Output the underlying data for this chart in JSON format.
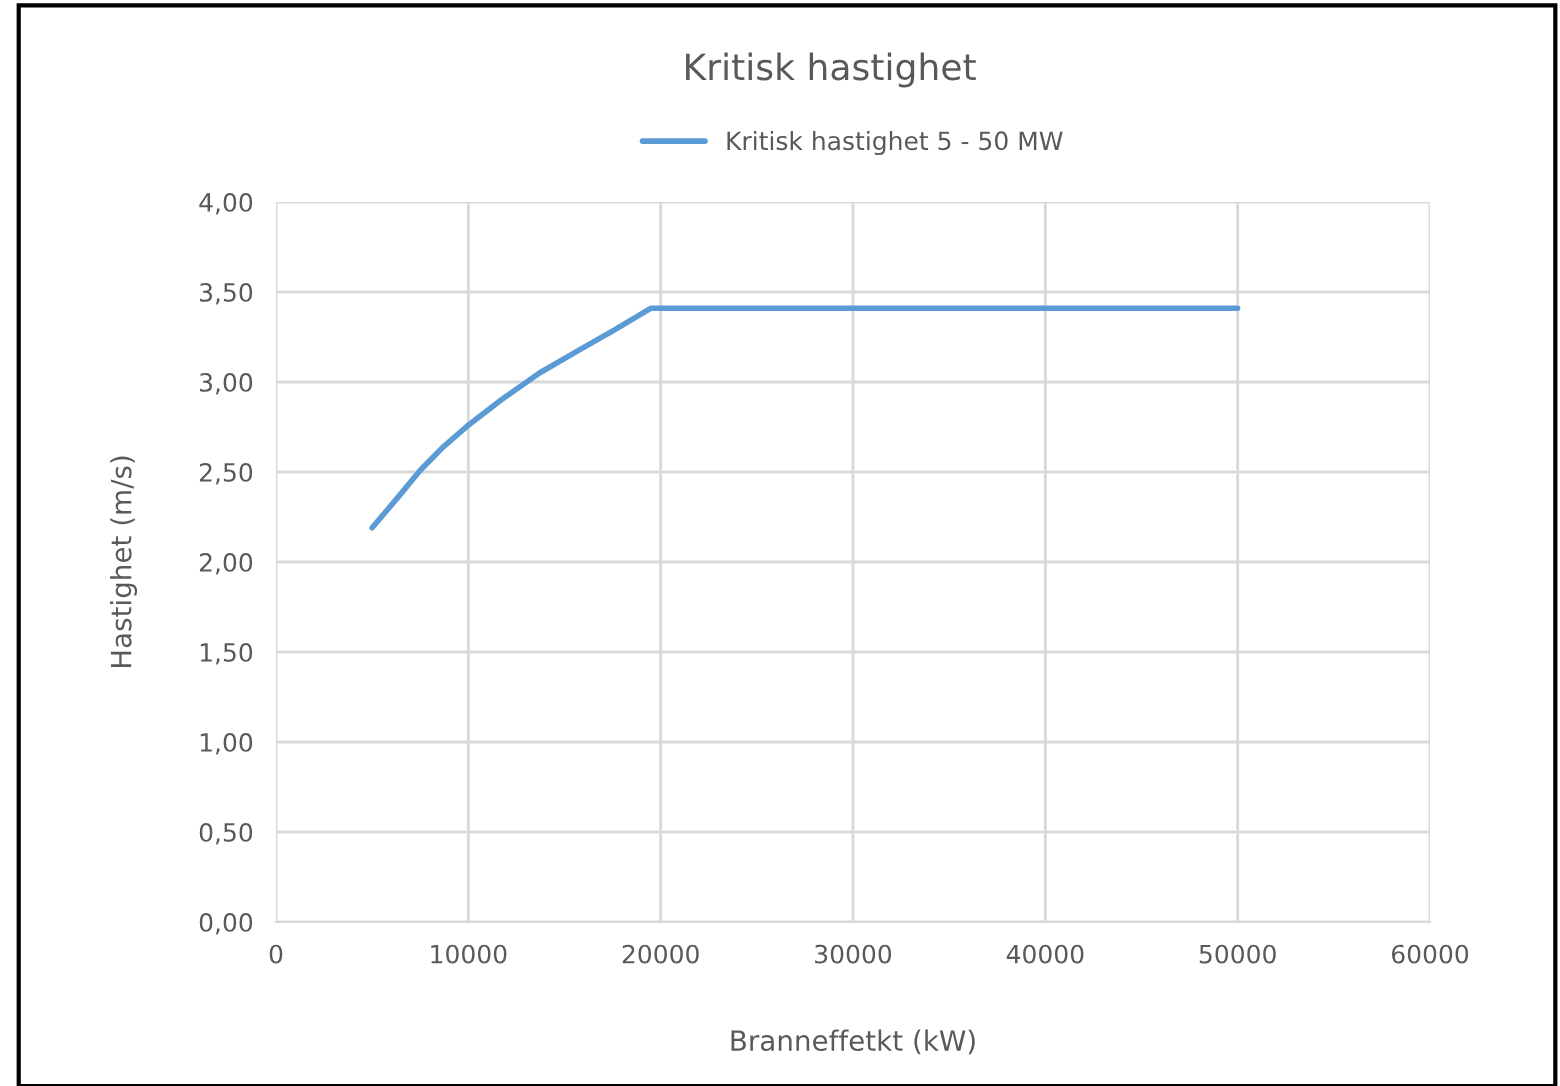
{
  "chart_data": {
    "type": "line",
    "title": "Kritisk hastighet",
    "xlabel": "Branneffetkt (kW)",
    "ylabel": "Hastighet (m/s)",
    "x": [
      5000,
      6500,
      7500,
      8700,
      10000,
      11700,
      13700,
      15800,
      17600,
      19500,
      50000
    ],
    "series": [
      {
        "name": "Kritisk hastighet 5 - 50 MW",
        "color": "#5b9bd5",
        "values": [
          2.19,
          2.38,
          2.51,
          2.64,
          2.76,
          2.9,
          3.05,
          3.18,
          3.29,
          3.41,
          3.41
        ]
      }
    ],
    "xlim": [
      0,
      60000
    ],
    "xticks": [
      0,
      10000,
      20000,
      30000,
      40000,
      50000,
      60000
    ],
    "ylim": [
      0,
      4
    ],
    "yticks": [
      {
        "value": 0,
        "label": "0,00"
      },
      {
        "value": 0.5,
        "label": "0,50"
      },
      {
        "value": 1,
        "label": "1,00"
      },
      {
        "value": 1.5,
        "label": "1,50"
      },
      {
        "value": 2,
        "label": "2,00"
      },
      {
        "value": 2.5,
        "label": "2,50"
      },
      {
        "value": 3,
        "label": "3,00"
      },
      {
        "value": 3.5,
        "label": "3,50"
      },
      {
        "value": 4,
        "label": "4,00"
      }
    ],
    "grid": true,
    "legend": "top",
    "marker": "none",
    "line_style": "solid"
  }
}
